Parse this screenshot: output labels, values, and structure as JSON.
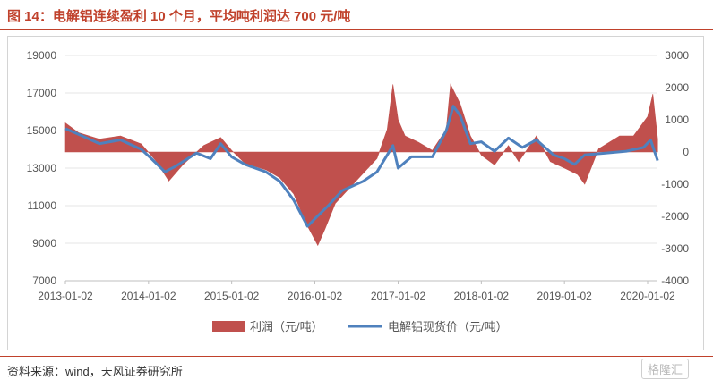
{
  "header": {
    "title": "图 14：电解铝连续盈利 10 个月，平均吨利润达 700 元/吨"
  },
  "footer": {
    "source": "资料来源：wind，天风证券研究所",
    "watermark": "格隆汇"
  },
  "chart_data": {
    "type": "bar+line",
    "colors": {
      "profit": "#c0504d",
      "price": "#4f81bd",
      "accent": "#c0412b"
    },
    "x_ticks": [
      "2013-01-02",
      "2014-01-02",
      "2015-01-02",
      "2016-01-02",
      "2017-01-02",
      "2018-01-02",
      "2019-01-02",
      "2020-01-02"
    ],
    "y_left": {
      "range": [
        7000,
        19000
      ],
      "ticks": [
        "19000",
        "17000",
        "15000",
        "13000",
        "11000",
        "9000",
        "7000"
      ]
    },
    "y_right": {
      "range": [
        -4000,
        3000
      ],
      "ticks": [
        "3000",
        "2000",
        "1000",
        "0",
        "-1000",
        "-2000",
        "-3000",
        "-4000"
      ]
    },
    "legend": {
      "placement": "bottom",
      "profit_label": "利润（元/吨）",
      "price_label": "电解铝现货价（元/吨）"
    },
    "series": [
      {
        "name": "利润（元/吨）",
        "type": "area",
        "axis": "right",
        "points": [
          [
            "2013-01-02",
            900
          ],
          [
            "2013-03-01",
            600
          ],
          [
            "2013-06-01",
            400
          ],
          [
            "2013-09-01",
            500
          ],
          [
            "2013-12-01",
            250
          ],
          [
            "2014-02-01",
            -250
          ],
          [
            "2014-04-01",
            -900
          ],
          [
            "2014-06-01",
            -400
          ],
          [
            "2014-09-01",
            200
          ],
          [
            "2014-11-15",
            450
          ],
          [
            "2015-01-02",
            50
          ],
          [
            "2015-03-01",
            -350
          ],
          [
            "2015-06-01",
            -550
          ],
          [
            "2015-08-01",
            -800
          ],
          [
            "2015-10-01",
            -1300
          ],
          [
            "2015-12-01",
            -2300
          ],
          [
            "2016-01-15",
            -2900
          ],
          [
            "2016-02-15",
            -2400
          ],
          [
            "2016-04-01",
            -1600
          ],
          [
            "2016-07-01",
            -900
          ],
          [
            "2016-10-01",
            -200
          ],
          [
            "2016-11-15",
            700
          ],
          [
            "2016-12-10",
            2100
          ],
          [
            "2017-01-02",
            1000
          ],
          [
            "2017-02-01",
            500
          ],
          [
            "2017-04-01",
            300
          ],
          [
            "2017-06-01",
            50
          ],
          [
            "2017-08-01",
            700
          ],
          [
            "2017-08-20",
            2100
          ],
          [
            "2017-10-01",
            1500
          ],
          [
            "2017-11-15",
            500
          ],
          [
            "2018-01-02",
            -100
          ],
          [
            "2018-03-01",
            -400
          ],
          [
            "2018-05-01",
            200
          ],
          [
            "2018-06-15",
            -300
          ],
          [
            "2018-09-01",
            500
          ],
          [
            "2018-11-01",
            -300
          ],
          [
            "2019-01-02",
            -500
          ],
          [
            "2019-03-01",
            -700
          ],
          [
            "2019-04-01",
            -1000
          ],
          [
            "2019-06-01",
            100
          ],
          [
            "2019-09-01",
            500
          ],
          [
            "2019-11-01",
            500
          ],
          [
            "2020-01-02",
            1100
          ],
          [
            "2020-01-25",
            1800
          ],
          [
            "2020-02-15",
            400
          ]
        ]
      },
      {
        "name": "电解铝现货价（元/吨）",
        "type": "line",
        "axis": "left",
        "points": [
          [
            "2013-01-02",
            15100
          ],
          [
            "2013-03-01",
            14800
          ],
          [
            "2013-06-01",
            14300
          ],
          [
            "2013-09-01",
            14500
          ],
          [
            "2013-12-01",
            14000
          ],
          [
            "2014-01-15",
            13500
          ],
          [
            "2014-03-15",
            12800
          ],
          [
            "2014-05-01",
            13100
          ],
          [
            "2014-08-01",
            13800
          ],
          [
            "2014-10-01",
            13500
          ],
          [
            "2014-11-15",
            14300
          ],
          [
            "2015-01-02",
            13600
          ],
          [
            "2015-03-01",
            13200
          ],
          [
            "2015-06-01",
            12800
          ],
          [
            "2015-08-01",
            12300
          ],
          [
            "2015-10-01",
            11300
          ],
          [
            "2015-12-01",
            9900
          ],
          [
            "2016-01-02",
            10300
          ],
          [
            "2016-03-01",
            11000
          ],
          [
            "2016-05-01",
            11800
          ],
          [
            "2016-08-01",
            12300
          ],
          [
            "2016-10-01",
            12800
          ],
          [
            "2016-12-10",
            14200
          ],
          [
            "2017-01-02",
            13000
          ],
          [
            "2017-03-01",
            13600
          ],
          [
            "2017-06-01",
            13600
          ],
          [
            "2017-08-01",
            15000
          ],
          [
            "2017-09-01",
            16300
          ],
          [
            "2017-10-01",
            15800
          ],
          [
            "2017-11-15",
            14300
          ],
          [
            "2018-01-02",
            14400
          ],
          [
            "2018-03-01",
            13900
          ],
          [
            "2018-05-01",
            14600
          ],
          [
            "2018-07-01",
            14100
          ],
          [
            "2018-09-01",
            14500
          ],
          [
            "2018-11-15",
            13700
          ],
          [
            "2019-01-02",
            13500
          ],
          [
            "2019-02-15",
            13200
          ],
          [
            "2019-04-01",
            13700
          ],
          [
            "2019-07-01",
            13800
          ],
          [
            "2019-10-01",
            13900
          ],
          [
            "2019-12-15",
            14100
          ],
          [
            "2020-01-15",
            14500
          ],
          [
            "2020-02-15",
            13400
          ]
        ]
      }
    ]
  }
}
